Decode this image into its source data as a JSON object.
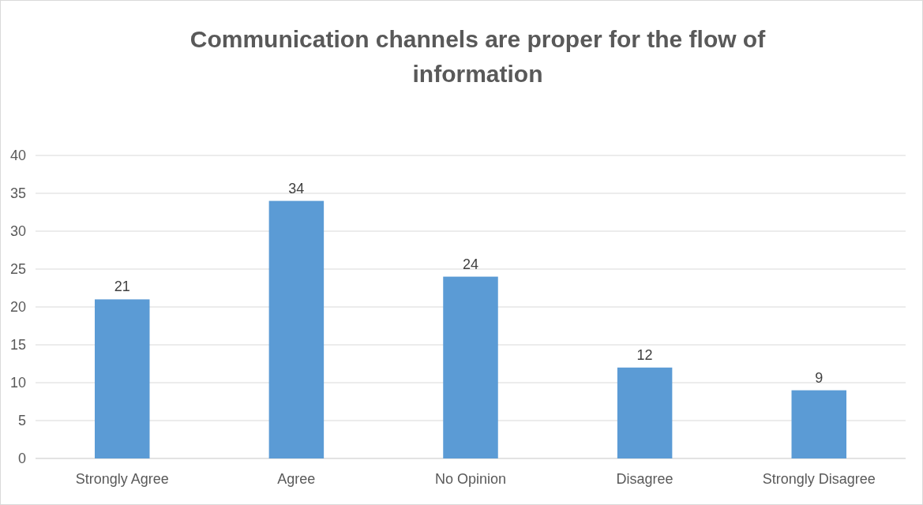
{
  "chart_data": {
    "type": "bar",
    "title": "Communication channels are proper for the flow of information",
    "categories": [
      "Strongly Agree",
      "Agree",
      "No Opinion",
      "Disagree",
      "Strongly Disagree"
    ],
    "values": [
      21,
      34,
      24,
      12,
      9
    ],
    "color": "#5b9bd5",
    "ylim": [
      0,
      40
    ],
    "yticks": [
      0,
      5,
      10,
      15,
      20,
      25,
      30,
      35,
      40
    ],
    "grid": "y",
    "data_labels": true
  }
}
